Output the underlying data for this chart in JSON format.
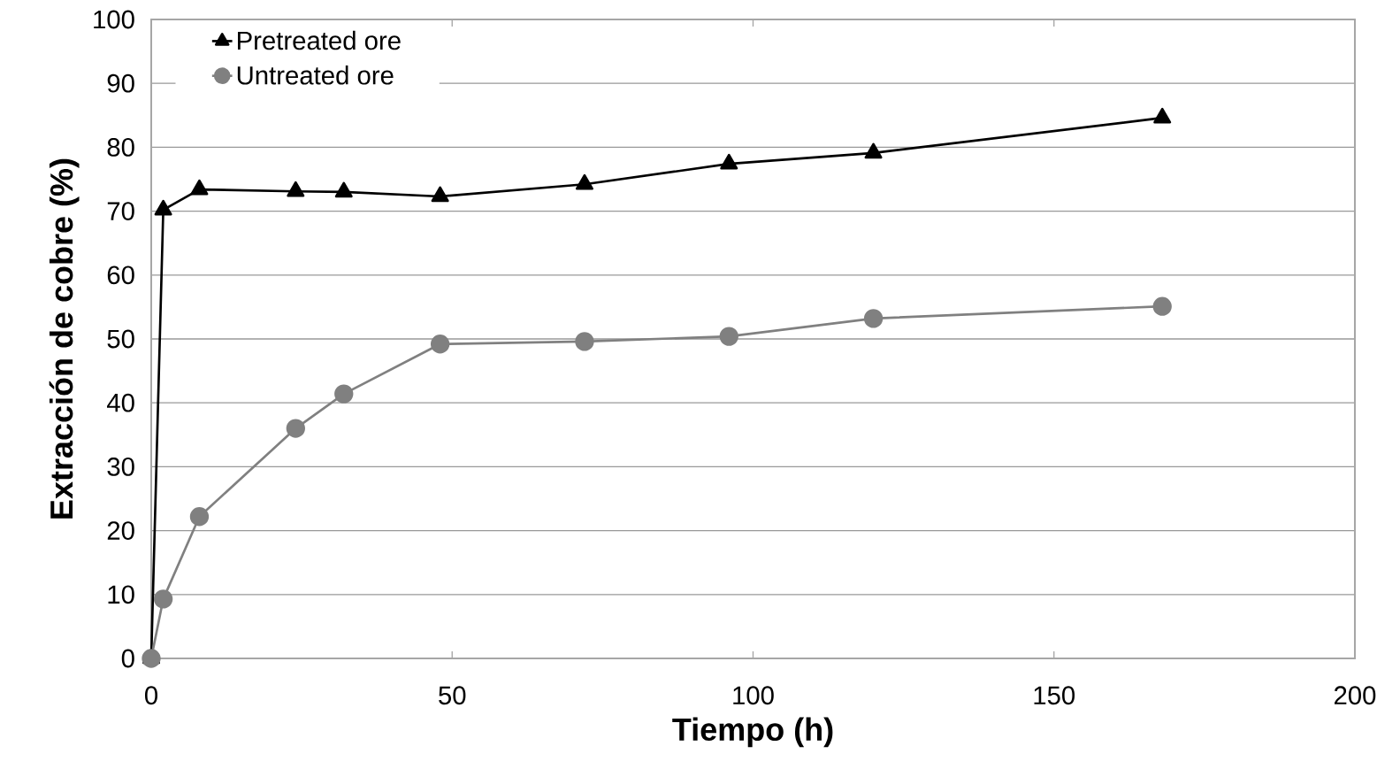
{
  "chart_data": {
    "type": "line",
    "xlabel": "Tiempo (h)",
    "ylabel": "Extracción de cobre (%)",
    "x": [
      0,
      2,
      8,
      24,
      32,
      48,
      72,
      96,
      120,
      168
    ],
    "series": [
      {
        "name": "Pretreated ore",
        "color": "#000000",
        "marker": "triangle",
        "values": [
          0,
          70.2,
          73.4,
          73.1,
          73.0,
          72.3,
          74.2,
          77.4,
          79.1,
          84.6
        ]
      },
      {
        "name": "Untreated ore",
        "color": "#808080",
        "marker": "circle",
        "values": [
          0,
          9.3,
          22.2,
          36.0,
          41.4,
          49.2,
          49.6,
          50.4,
          53.2,
          55.1
        ]
      }
    ],
    "xlim": [
      0,
      200
    ],
    "xticks": [
      0,
      50,
      100,
      150,
      200
    ],
    "ylim": [
      0,
      100
    ],
    "yticks": [
      0,
      10,
      20,
      30,
      40,
      50,
      60,
      70,
      80,
      90,
      100
    ],
    "grid": "y",
    "legend": "top left",
    "line_style": "solid"
  }
}
